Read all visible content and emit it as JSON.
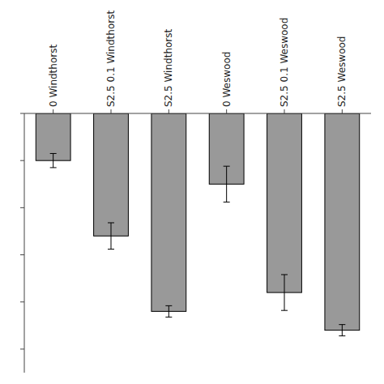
{
  "chart_data": {
    "type": "bar",
    "categories": [
      "0 Windthorst",
      "S2.5 0.1 Windthorst",
      "S2.5 Windthorst",
      "0 Weswood",
      "S2.5 0.1 Weswood",
      "S2.5 Weswood"
    ],
    "values": [
      1.0,
      2.6,
      4.2,
      1.5,
      3.8,
      4.6
    ],
    "errors": [
      0.15,
      0.28,
      0.12,
      0.38,
      0.38,
      0.12
    ],
    "color": "#999999",
    "ylim": [
      0,
      5.5
    ],
    "yticks": [
      0,
      1,
      2,
      3,
      4,
      5
    ],
    "tick_labels": "x"
  }
}
